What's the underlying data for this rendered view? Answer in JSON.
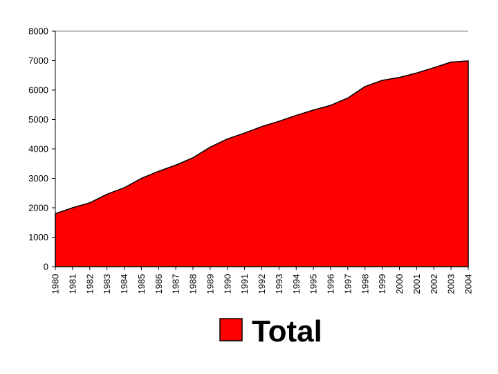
{
  "chart_data": {
    "type": "area",
    "title": "",
    "xlabel": "",
    "ylabel": "",
    "ylim": [
      0,
      8000
    ],
    "y_ticks": [
      "0",
      "1000",
      "2000",
      "3000",
      "4000",
      "5000",
      "6000",
      "7000",
      "8000"
    ],
    "categories": [
      "1980",
      "1981",
      "1982",
      "1983",
      "1984",
      "1985",
      "1986",
      "1987",
      "1988",
      "1989",
      "1990",
      "1991",
      "1992",
      "1993",
      "1994",
      "1995",
      "1996",
      "1997",
      "1998",
      "1999",
      "2000",
      "2001",
      "2002",
      "2003",
      "2004"
    ],
    "series": [
      {
        "name": "Total",
        "color": "#ff0000",
        "values": [
          1800,
          2000,
          2170,
          2460,
          2680,
          3000,
          3240,
          3450,
          3700,
          4060,
          4340,
          4540,
          4760,
          4940,
          5140,
          5320,
          5480,
          5730,
          6120,
          6330,
          6430,
          6580,
          6760,
          6950,
          6990
        ]
      }
    ],
    "legend_position": "bottom",
    "grid": false
  }
}
